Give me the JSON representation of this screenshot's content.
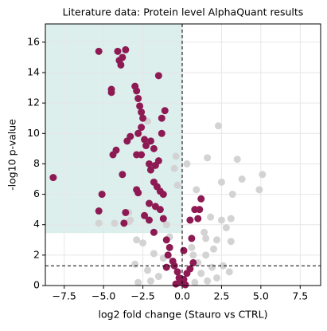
{
  "chart_data": {
    "type": "scatter",
    "title": "Literature data: Protein level AlphaQuant results",
    "x_label": "log2 fold change (Stauro vs CTRL)",
    "y_label": "-log10 p-value",
    "xlim": [
      -8.7,
      8.8
    ],
    "ylim": [
      0,
      17.2
    ],
    "xticks": [
      {
        "value": -7.5,
        "label": "−7.5"
      },
      {
        "value": -5,
        "label": "−5.0"
      },
      {
        "value": -2.5,
        "label": "−2.5"
      },
      {
        "value": 0,
        "label": "0.0"
      },
      2.5,
      {
        "value": 5,
        "label": "5.0"
      },
      7.5
    ],
    "yticks": [
      0,
      2,
      4,
      6,
      8,
      10,
      12,
      14,
      16
    ],
    "grid": true,
    "highlight_region": {
      "color": "#dcefed",
      "xlim": [
        -8.7,
        0
      ],
      "ylim": [
        3.45,
        17.2
      ]
    },
    "threshold_lines": {
      "x": 0,
      "y": 1.3
    },
    "series": [
      {
        "color": "#d3d3d3",
        "x": [
          -5.3,
          -4.3,
          -3.4,
          -2.2,
          -0.4,
          -0.5,
          -0.3,
          1.6,
          2.3,
          3.5,
          3.2,
          3.8,
          5.1,
          4.9,
          2.5,
          0.3,
          0.9,
          2.5,
          3.1,
          2.8,
          1.8,
          1.4,
          3.1,
          2.0,
          1.5,
          2.6,
          3.0,
          2.2,
          1.6,
          1.9,
          -2.5,
          -3.0,
          -3.4,
          -2.0,
          -1.5,
          -2.2,
          -1.8,
          -1.2,
          -0.8,
          0.6,
          1.0,
          1.2,
          0.8,
          -2.8,
          -3.3,
          -2.9,
          2.2,
          1.5,
          0.7,
          -1.0
        ],
        "values": [
          4.1,
          4.1,
          4.2,
          10.8,
          8.5,
          7.7,
          6.6,
          8.4,
          10.5,
          8.3,
          6.0,
          7.0,
          7.3,
          6.3,
          6.8,
          8.0,
          6.3,
          4.3,
          4.4,
          3.8,
          4.5,
          3.5,
          2.9,
          2.4,
          2.0,
          1.3,
          0.9,
          0.5,
          0.3,
          1.2,
          2.8,
          1.4,
          4.8,
          0.3,
          0.6,
          1.0,
          2.1,
          1.8,
          3.2,
          2.5,
          1.5,
          0.8,
          0.2,
          0.2,
          4.3,
          3.0,
          3.0,
          3.1,
          2.0,
          4.0
        ]
      },
      {
        "color": "#8e1a53",
        "x": [
          -8.2,
          -5.3,
          -5.3,
          -5.1,
          -4.4,
          -4.2,
          -4.1,
          -4.0,
          -3.9,
          -3.8,
          -3.6,
          -4.5,
          -4.5,
          -3.7,
          -3.6,
          -3.8,
          -3.5,
          -3.3,
          -3.0,
          -2.9,
          -2.8,
          -2.7,
          -2.6,
          -2.5,
          -2.6,
          -2.8,
          -2.4,
          -2.3,
          -2.0,
          -1.8,
          -2.9,
          -2.6,
          -2.1,
          -2.0,
          -1.7,
          -1.5,
          -1.3,
          -1.1,
          -1.5,
          -1.3,
          -1.8,
          -1.6,
          -1.4,
          -1.2,
          -2.9,
          -2.8,
          -2.1,
          -1.7,
          -1.4,
          -2.4,
          -2.1,
          -1.2,
          -1.8,
          -1.0,
          -0.9,
          -0.6,
          -0.5,
          -0.3,
          -0.2,
          -0.1,
          0.1,
          0.3,
          0.5,
          0.7,
          -0.8,
          -1.0,
          0.1,
          1.2,
          1.0,
          0.8,
          1.1,
          0.5,
          0.6,
          -0.4,
          0.2
        ],
        "values": [
          7.1,
          15.4,
          4.9,
          6.0,
          8.6,
          8.9,
          15.4,
          14.8,
          14.5,
          15.0,
          15.5,
          12.7,
          12.9,
          4.1,
          4.8,
          7.3,
          9.5,
          9.8,
          13.1,
          12.8,
          12.3,
          11.8,
          11.4,
          11.0,
          10.4,
          10.0,
          9.6,
          9.2,
          9.5,
          9.0,
          8.6,
          8.6,
          8.0,
          7.6,
          7.9,
          8.2,
          11.0,
          11.5,
          13.8,
          10.0,
          6.8,
          6.5,
          6.2,
          6.0,
          6.3,
          6.1,
          5.4,
          5.2,
          5.0,
          4.6,
          4.3,
          4.4,
          3.5,
          3.0,
          2.0,
          1.6,
          1.3,
          0.9,
          0.5,
          0.2,
          0.4,
          0.8,
          1.1,
          1.5,
          2.5,
          1.2,
          2.3,
          5.7,
          4.4,
          5.0,
          5.0,
          4.3,
          3.1,
          0.1,
          0.05
        ]
      }
    ]
  }
}
